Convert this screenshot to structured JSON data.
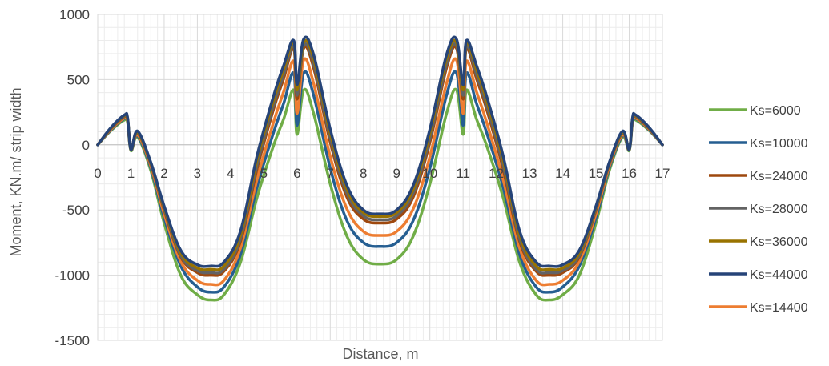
{
  "chart_data": {
    "type": "line",
    "title": "",
    "xlabel": "Distance, m",
    "ylabel": "Moment, KN.m/ strip width",
    "xlim": [
      0,
      17
    ],
    "ylim": [
      -1500,
      1000
    ],
    "x_ticks": [
      "0",
      "1",
      "2",
      "3",
      "4",
      "5",
      "6",
      "7",
      "8",
      "9",
      "10",
      "11",
      "12",
      "13",
      "14",
      "15",
      "16",
      "17"
    ],
    "y_ticks": [
      "1000",
      "500",
      "0",
      "-500",
      "-1000",
      "-1500"
    ],
    "grid": true,
    "legend_position": "right",
    "x": [
      0,
      0.4,
      0.8,
      0.9,
      1.0,
      1.2,
      1.6,
      2.0,
      2.5,
      3.0,
      3.4,
      3.8,
      4.3,
      4.8,
      5.3,
      5.6,
      5.9,
      6.0,
      6.2,
      6.5,
      7.0,
      7.5,
      8.0,
      8.5,
      9.0,
      9.5,
      10.0,
      10.5,
      10.8,
      11.0,
      11.1,
      11.4,
      11.7,
      12.2,
      12.7,
      13.2,
      13.6,
      14.0,
      14.5,
      15.0,
      15.4,
      15.8,
      16.0,
      16.1,
      16.2,
      16.6,
      17.0
    ],
    "series": [
      {
        "name": "Ks=6000",
        "color": "#70ad47",
        "values": [
          0,
          110,
          190,
          170,
          -45,
          60,
          -200,
          -600,
          -1000,
          -1150,
          -1190,
          -1150,
          -900,
          -400,
          0,
          200,
          420,
          80,
          420,
          240,
          -300,
          -700,
          -880,
          -915,
          -880,
          -700,
          -300,
          240,
          420,
          80,
          420,
          200,
          0,
          -400,
          -900,
          -1150,
          -1190,
          -1150,
          -1000,
          -600,
          -200,
          60,
          -45,
          170,
          190,
          110,
          0
        ]
      },
      {
        "name": "Ks=10000",
        "color": "#255e91",
        "values": [
          0,
          115,
          200,
          180,
          -40,
          70,
          -180,
          -560,
          -930,
          -1090,
          -1130,
          -1090,
          -840,
          -320,
          100,
          320,
          550,
          150,
          550,
          380,
          -180,
          -580,
          -750,
          -780,
          -750,
          -580,
          -180,
          380,
          550,
          150,
          550,
          320,
          100,
          -320,
          -840,
          -1090,
          -1130,
          -1090,
          -930,
          -560,
          -180,
          70,
          -40,
          180,
          200,
          115,
          0
        ]
      },
      {
        "name": "Ks=24000",
        "color": "#9e480e",
        "values": [
          0,
          125,
          215,
          195,
          -35,
          90,
          -150,
          -500,
          -860,
          -980,
          -1000,
          -970,
          -740,
          -180,
          280,
          510,
          740,
          350,
          740,
          590,
          20,
          -400,
          -570,
          -600,
          -570,
          -400,
          20,
          590,
          740,
          350,
          740,
          510,
          280,
          -180,
          -740,
          -970,
          -1000,
          -980,
          -860,
          -500,
          -150,
          90,
          -35,
          195,
          215,
          125,
          0
        ]
      },
      {
        "name": "Ks=28000",
        "color": "#636363",
        "values": [
          0,
          128,
          218,
          198,
          -35,
          93,
          -145,
          -490,
          -850,
          -965,
          -980,
          -955,
          -720,
          -150,
          310,
          540,
          760,
          380,
          760,
          620,
          50,
          -370,
          -545,
          -575,
          -545,
          -370,
          50,
          620,
          760,
          380,
          760,
          540,
          310,
          -150,
          -720,
          -955,
          -980,
          -965,
          -850,
          -490,
          -145,
          93,
          -35,
          198,
          218,
          128,
          0
        ]
      },
      {
        "name": "Ks=36000",
        "color": "#997300",
        "values": [
          0,
          130,
          222,
          202,
          -35,
          97,
          -140,
          -480,
          -830,
          -945,
          -955,
          -930,
          -690,
          -110,
          350,
          580,
          785,
          420,
          785,
          660,
          90,
          -340,
          -520,
          -550,
          -520,
          -340,
          90,
          660,
          785,
          420,
          785,
          580,
          350,
          -110,
          -690,
          -930,
          -955,
          -945,
          -830,
          -480,
          -140,
          97,
          -35,
          202,
          222,
          130,
          0
        ]
      },
      {
        "name": "Ks=44000",
        "color": "#264478",
        "values": [
          0,
          133,
          228,
          208,
          -35,
          105,
          -135,
          -470,
          -810,
          -920,
          -930,
          -900,
          -660,
          -80,
          380,
          610,
          800,
          460,
          810,
          690,
          120,
          -310,
          -500,
          -530,
          -500,
          -310,
          120,
          690,
          810,
          460,
          800,
          610,
          380,
          -80,
          -660,
          -900,
          -930,
          -920,
          -810,
          -470,
          -135,
          105,
          -35,
          208,
          228,
          133,
          0
        ]
      },
      {
        "name": "Ks=14400",
        "color": "#ed7d31",
        "values": [
          0,
          120,
          205,
          185,
          -38,
          78,
          -165,
          -530,
          -895,
          -1040,
          -1070,
          -1040,
          -790,
          -260,
          180,
          410,
          640,
          240,
          650,
          470,
          -90,
          -490,
          -665,
          -695,
          -665,
          -490,
          -90,
          470,
          650,
          240,
          640,
          410,
          180,
          -260,
          -790,
          -1040,
          -1070,
          -1040,
          -895,
          -530,
          -165,
          78,
          -38,
          185,
          205,
          120,
          0
        ]
      }
    ]
  }
}
